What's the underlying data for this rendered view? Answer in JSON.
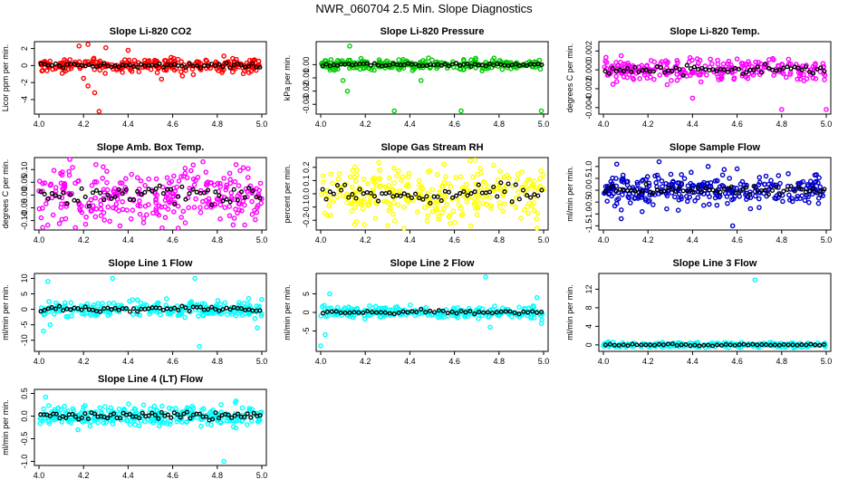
{
  "title": "NWR_060704  2.5 Min. Slope Diagnostics",
  "chart_data": [
    {
      "type": "scatter",
      "title": "Slope Li-820 CO2",
      "ylabel": "Licor ppm per min.",
      "xlim": [
        4.0,
        5.0
      ],
      "ylim": [
        -5.5,
        2.6
      ],
      "x_ticks": [
        "4.0",
        "4.2",
        "4.4",
        "4.6",
        "4.8",
        "5.0"
      ],
      "y_ticks": [
        -4,
        -2,
        0,
        2
      ],
      "y_tick_labels": [
        "-4",
        "-2",
        "0",
        "2"
      ],
      "color": "#ff0000",
      "amplitude": 0.8,
      "n_points": 250,
      "n_black": 60,
      "outliers": [
        [
          4.2,
          -1.5
        ],
        [
          4.22,
          -2.4
        ],
        [
          4.25,
          -3.2
        ],
        [
          4.27,
          -5.4
        ],
        [
          4.18,
          2.3
        ],
        [
          4.22,
          2.5
        ],
        [
          4.3,
          2.1
        ],
        [
          4.55,
          -1.6
        ],
        [
          4.4,
          1.8
        ]
      ]
    },
    {
      "type": "scatter",
      "title": "Slope Li-820 Pressure",
      "ylabel": "kPa per min.",
      "xlim": [
        4.0,
        5.0
      ],
      "ylim": [
        -0.036,
        0.016
      ],
      "x_ticks": [
        "4.0",
        "4.2",
        "4.4",
        "4.6",
        "4.8",
        "5.0"
      ],
      "y_ticks": [
        0.0,
        -0.01,
        -0.02,
        -0.03
      ],
      "y_tick_labels": [
        "0.00",
        "-0.01",
        "-0.02",
        "-0.03"
      ],
      "color": "#00cc00",
      "amplitude": 0.004,
      "n_points": 250,
      "n_black": 60,
      "outliers": [
        [
          4.13,
          0.014
        ],
        [
          4.1,
          -0.012
        ],
        [
          4.12,
          -0.02
        ],
        [
          4.33,
          -0.035
        ],
        [
          4.63,
          -0.035
        ],
        [
          4.99,
          -0.035
        ],
        [
          4.45,
          -0.012
        ]
      ]
    },
    {
      "type": "scatter",
      "title": "Slope Li-820 Temp.",
      "ylabel": "degrees C per min.",
      "xlim": [
        4.0,
        5.0
      ],
      "ylim": [
        -0.0045,
        0.0028
      ],
      "x_ticks": [
        "4.0",
        "4.2",
        "4.4",
        "4.6",
        "4.8",
        "5.0"
      ],
      "y_ticks": [
        0.002,
        0.0,
        -0.002,
        -0.004
      ],
      "y_tick_labels": [
        "0.002",
        "0.000",
        "-0.002",
        "-0.004"
      ],
      "color": "#ff00ff",
      "amplitude": 0.0012,
      "n_points": 250,
      "n_black": 60,
      "outliers": [
        [
          4.08,
          0.0015
        ],
        [
          4.76,
          0.0012
        ],
        [
          4.8,
          -0.0042
        ],
        [
          5.0,
          -0.0042
        ],
        [
          4.4,
          -0.003
        ]
      ]
    },
    {
      "type": "scatter",
      "title": "Slope Amb. Box Temp.",
      "ylabel": "degrees C per min.",
      "xlim": [
        4.0,
        5.0
      ],
      "ylim": [
        -0.13,
        0.14
      ],
      "x_ticks": [
        "4.0",
        "4.2",
        "4.4",
        "4.6",
        "4.8",
        "5.0"
      ],
      "y_ticks": [
        0.1,
        0.05,
        0.0,
        -0.05,
        -0.1
      ],
      "y_tick_labels": [
        "0.10",
        "0.05",
        "0.00",
        "-0.05",
        "-0.10"
      ],
      "color": "#ff00ff",
      "amplitude": 0.12,
      "n_points": 300,
      "n_black": 60,
      "outliers": []
    },
    {
      "type": "scatter",
      "title": "Slope Gas Stream RH",
      "ylabel": "percent per min.",
      "xlim": [
        4.0,
        5.0
      ],
      "ylim": [
        -0.26,
        0.26
      ],
      "x_ticks": [
        "4.0",
        "4.2",
        "4.4",
        "4.6",
        "4.8",
        "5.0"
      ],
      "y_ticks": [
        0.2,
        0.1,
        0.0,
        -0.1,
        -0.2
      ],
      "y_tick_labels": [
        "0.2",
        "0.1",
        "0.0",
        "-0.1",
        "-0.2"
      ],
      "color": "#ffff00",
      "amplitude": 0.2,
      "n_points": 300,
      "n_black": 60,
      "outliers": [
        [
          4.67,
          0.25
        ],
        [
          4.3,
          -0.24
        ]
      ]
    },
    {
      "type": "scatter",
      "title": "Slope Sample Flow",
      "ylabel": "ml/min per min.",
      "xlim": [
        4.0,
        5.0
      ],
      "ylim": [
        -1.6,
        1.3
      ],
      "x_ticks": [
        "4.0",
        "4.2",
        "4.4",
        "4.6",
        "4.8",
        "5.0"
      ],
      "y_ticks": [
        1.0,
        0.5,
        0.0,
        -0.5,
        -1.0,
        -1.5
      ],
      "y_tick_labels": [
        "1.0",
        "0.5",
        "0.0",
        "-0.5",
        "-1.0",
        "-1.5"
      ],
      "color": "#0000cc",
      "amplitude": 0.6,
      "n_points": 300,
      "n_black": 60,
      "outliers": [
        [
          4.06,
          1.1
        ],
        [
          4.08,
          -1.2
        ],
        [
          4.25,
          1.2
        ],
        [
          4.58,
          -1.5
        ],
        [
          4.6,
          0.9
        ],
        [
          4.47,
          1.0
        ]
      ]
    },
    {
      "type": "scatter",
      "title": "Slope Line 1 Flow",
      "ylabel": "ml/min per min.",
      "xlim": [
        4.0,
        5.0
      ],
      "ylim": [
        -13,
        11
      ],
      "x_ticks": [
        "4.0",
        "4.2",
        "4.4",
        "4.6",
        "4.8",
        "5.0"
      ],
      "y_ticks": [
        10,
        5,
        0,
        -5,
        -10
      ],
      "y_tick_labels": [
        "10",
        "5",
        "0",
        "-5",
        "-10"
      ],
      "color": "#00ffff",
      "amplitude": 2.5,
      "n_points": 250,
      "n_black": 60,
      "outliers": [
        [
          4.02,
          -7
        ],
        [
          4.04,
          9
        ],
        [
          4.33,
          10
        ],
        [
          4.7,
          10
        ],
        [
          4.72,
          -12
        ],
        [
          4.05,
          -5
        ],
        [
          4.98,
          -6
        ]
      ]
    },
    {
      "type": "scatter",
      "title": "Slope Line 2 Flow",
      "ylabel": "ml/min per min.",
      "xlim": [
        4.0,
        5.0
      ],
      "ylim": [
        -10,
        10
      ],
      "x_ticks": [
        "4.0",
        "4.2",
        "4.4",
        "4.6",
        "4.8",
        "5.0"
      ],
      "y_ticks": [
        5,
        0,
        -5
      ],
      "y_tick_labels": [
        "5",
        "0",
        "-5"
      ],
      "color": "#00ffff",
      "amplitude": 1.5,
      "n_points": 250,
      "n_black": 50,
      "outliers": [
        [
          4.0,
          -9
        ],
        [
          4.02,
          -6
        ],
        [
          4.04,
          5
        ],
        [
          4.74,
          9.5
        ],
        [
          4.76,
          -4
        ],
        [
          4.97,
          4
        ],
        [
          4.99,
          -3
        ]
      ]
    },
    {
      "type": "scatter",
      "title": "Slope Line 3 Flow",
      "ylabel": "ml/min per min.",
      "xlim": [
        4.0,
        5.0
      ],
      "ylim": [
        -1,
        15
      ],
      "x_ticks": [
        "4.0",
        "4.2",
        "4.4",
        "4.6",
        "4.8",
        "5.0"
      ],
      "y_ticks": [
        12,
        8,
        4,
        0
      ],
      "y_tick_labels": [
        "12",
        "8",
        "4",
        "0"
      ],
      "color": "#00ffff",
      "amplitude": 0.5,
      "n_points": 250,
      "n_black": 50,
      "outliers": [
        [
          4.68,
          14
        ]
      ]
    },
    {
      "type": "scatter",
      "title": "Slope Line 4 (LT) Flow",
      "ylabel": "ml/min per min.",
      "xlim": [
        4.0,
        5.0
      ],
      "ylim": [
        -1.05,
        0.55
      ],
      "x_ticks": [
        "4.0",
        "4.2",
        "4.4",
        "4.6",
        "4.8",
        "5.0"
      ],
      "y_ticks": [
        0.5,
        0.0,
        -0.5,
        -1.0
      ],
      "y_tick_labels": [
        "0.5",
        "0.0",
        "-0.5",
        "-1.0"
      ],
      "color": "#00ffff",
      "amplitude": 0.22,
      "n_points": 300,
      "n_black": 70,
      "outliers": [
        [
          4.83,
          -1.0
        ],
        [
          4.03,
          0.42
        ]
      ]
    }
  ]
}
